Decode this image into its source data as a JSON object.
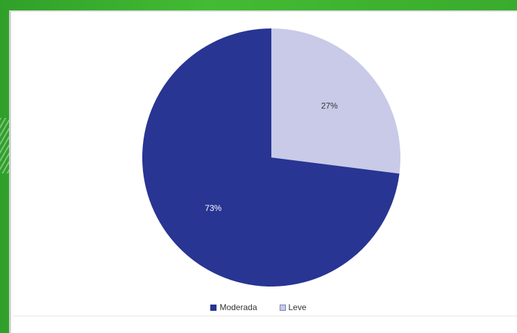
{
  "chart_data": {
    "type": "pie",
    "title": "",
    "categories": [
      "Moderada",
      "Leve"
    ],
    "values": [
      73,
      27
    ],
    "labels": [
      "73%",
      "27%"
    ],
    "colors": [
      "#283593",
      "#c8cae8"
    ],
    "label_colors": [
      "#ffffff",
      "#333333"
    ],
    "legend": {
      "position": "bottom",
      "items": [
        {
          "label": "Moderada",
          "color": "#283593"
        },
        {
          "label": "Leve",
          "color": "#c8cae8"
        }
      ]
    }
  },
  "theme": {
    "frame_color": "#3fb52f",
    "panel_color": "#ffffff"
  }
}
